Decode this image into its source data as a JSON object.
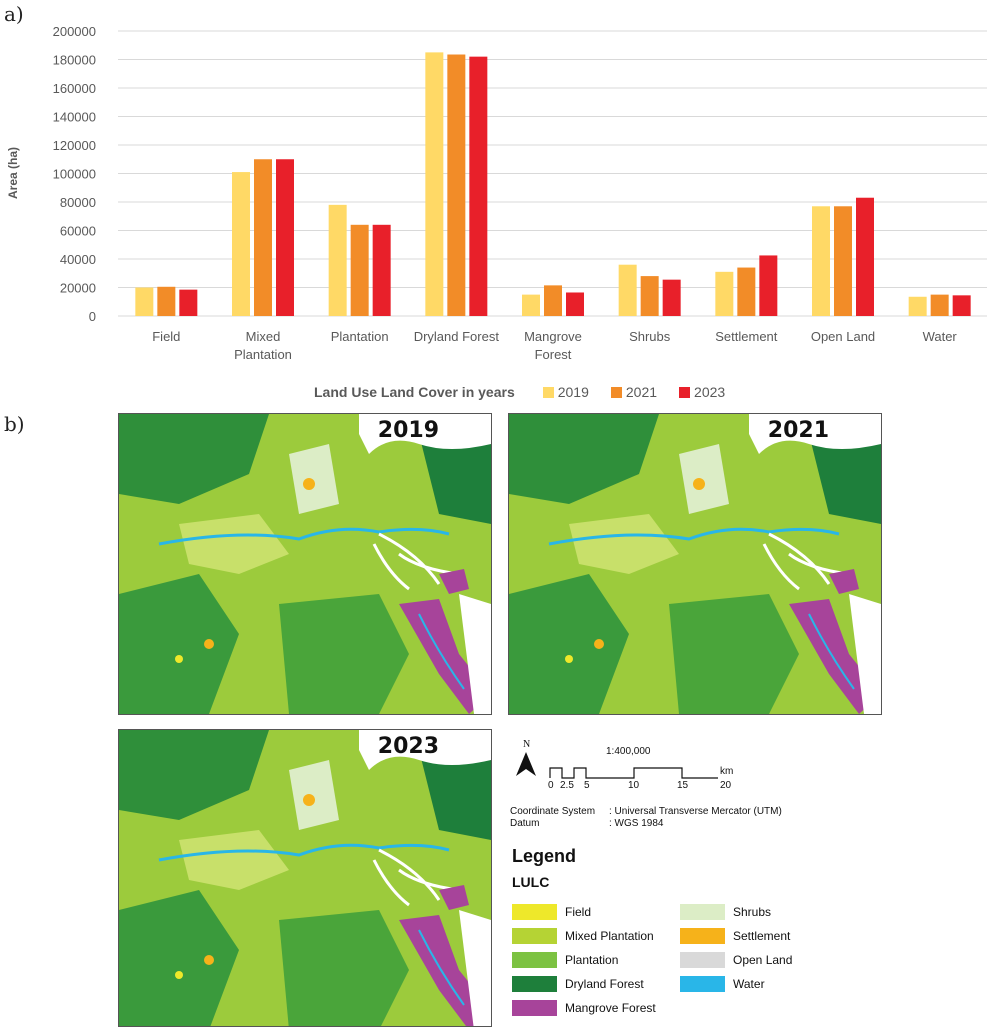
{
  "labels": {
    "a": "a)",
    "b": "b)"
  },
  "chart_data": {
    "type": "bar",
    "categories": [
      "Field",
      "Mixed Plantation",
      "Plantation",
      "Dryland Forest",
      "Mangrove Forest",
      "Shrubs",
      "Settlement",
      "Open Land",
      "Water"
    ],
    "category_lines": [
      [
        "Field"
      ],
      [
        "Mixed",
        "Plantation"
      ],
      [
        "Plantation"
      ],
      [
        "Dryland Forest"
      ],
      [
        "Mangrove",
        "Forest"
      ],
      [
        "Shrubs"
      ],
      [
        "Settlement"
      ],
      [
        "Open Land"
      ],
      [
        "Water"
      ]
    ],
    "series": [
      {
        "name": "2019",
        "color": "#ffd966",
        "values": [
          20000,
          101000,
          78000,
          185000,
          15000,
          36000,
          31000,
          77000,
          13500
        ]
      },
      {
        "name": "2021",
        "color": "#f28c28",
        "values": [
          20500,
          110000,
          64000,
          183500,
          21500,
          28000,
          34000,
          77000,
          15000
        ]
      },
      {
        "name": "2023",
        "color": "#e8202a",
        "values": [
          18500,
          110000,
          64000,
          182000,
          16500,
          25500,
          42500,
          83000,
          14500
        ]
      }
    ],
    "ylim": [
      0,
      200000
    ],
    "yticks": [
      "0",
      "20000",
      "40000",
      "60000",
      "80000",
      "100000",
      "120000",
      "140000",
      "160000",
      "180000",
      "200000"
    ],
    "ylabel": "Area (ha)",
    "xlabel": "Land Use Land Cover in years",
    "grid": true,
    "legend_position": "bottom"
  },
  "maps": [
    {
      "year": "2019"
    },
    {
      "year": "2021"
    },
    {
      "year": "2023"
    }
  ],
  "map_info": {
    "north": "N",
    "scale": "1:400,000",
    "scale_ticks": [
      "0",
      "2.5",
      "5",
      "10",
      "15",
      "20"
    ],
    "scale_unit": "km",
    "coord_label": "Coordinate System",
    "coord_value": ": Universal Transverse Mercator (UTM)",
    "datum_label": "Datum",
    "datum_value": ": WGS 1984"
  },
  "legend": {
    "title": "Legend",
    "subtitle": "LULC",
    "items": [
      {
        "label": "Field",
        "color": "#eee82a"
      },
      {
        "label": "Mixed Plantation",
        "color": "#b5d334"
      },
      {
        "label": "Plantation",
        "color": "#7cc242"
      },
      {
        "label": "Dryland Forest",
        "color": "#1e7f3b"
      },
      {
        "label": "Mangrove Forest",
        "color": "#a7449a"
      },
      {
        "label": "Shrubs",
        "color": "#dcedc6"
      },
      {
        "label": "Settlement",
        "color": "#f6b21a"
      },
      {
        "label": "Open Land",
        "color": "#d9d9d9"
      },
      {
        "label": "Water",
        "color": "#29b6e8"
      }
    ]
  }
}
